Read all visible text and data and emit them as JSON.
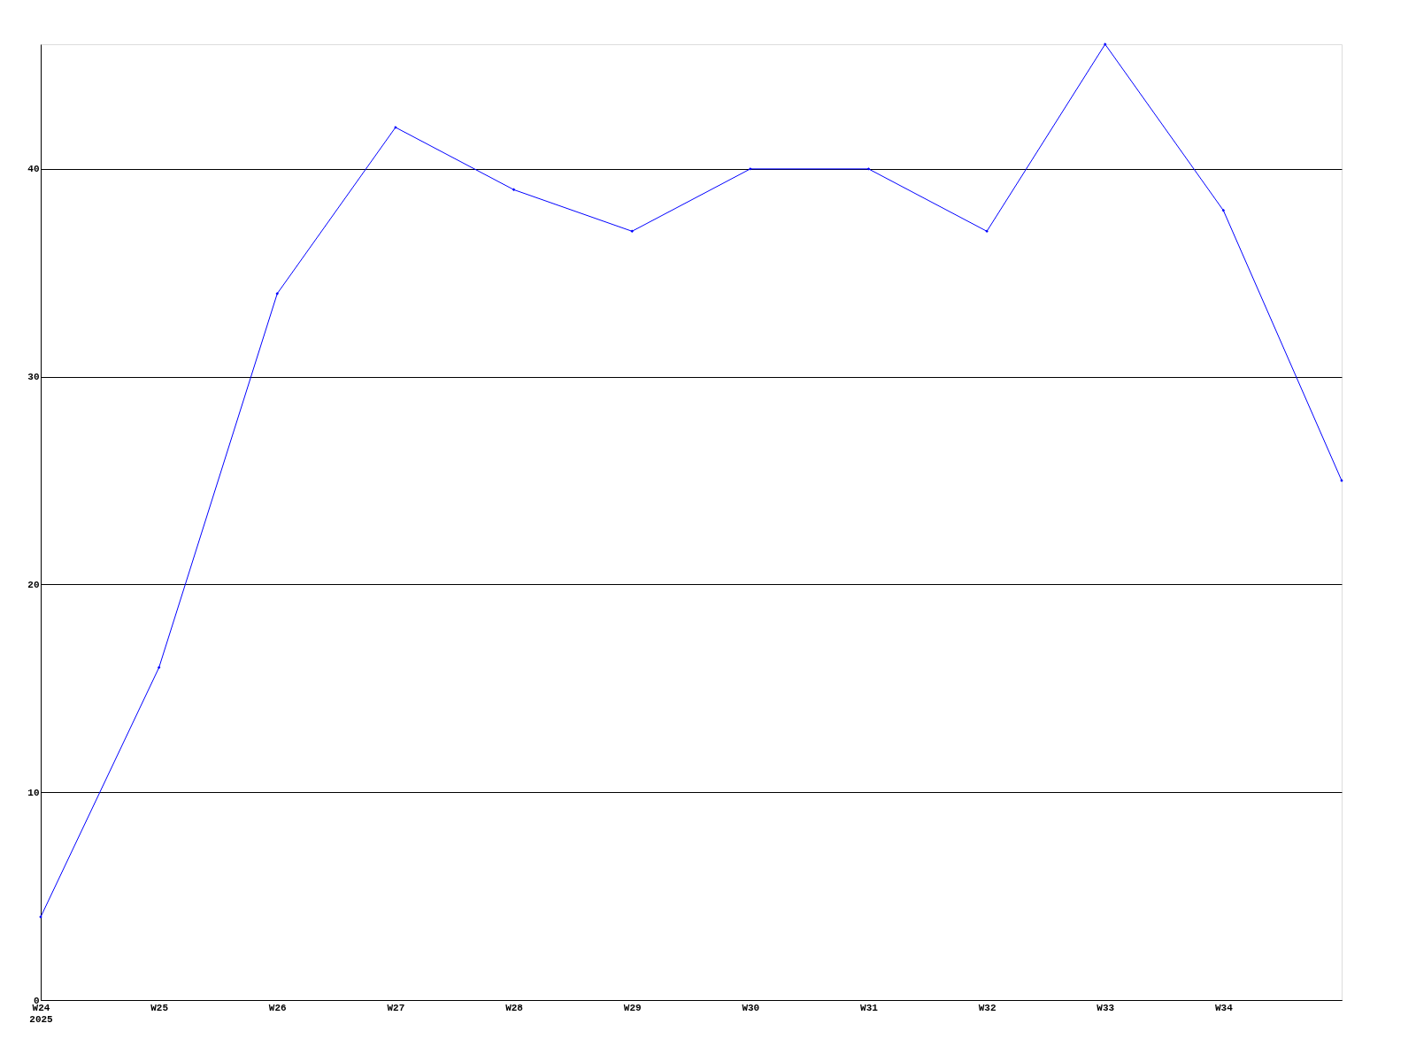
{
  "chart_data": {
    "type": "line",
    "categories": [
      "W24\n2025",
      "W25",
      "W26",
      "W27",
      "W28",
      "W29",
      "W30",
      "W31",
      "W32",
      "W33",
      "W34",
      null
    ],
    "series": [
      {
        "color": "#0000ff",
        "values": [
          4,
          16,
          34,
          42,
          39,
          37,
          40,
          40,
          37,
          46,
          38,
          25
        ]
      }
    ],
    "ylim": [
      0,
      46
    ],
    "yticks": [
      0,
      10,
      20,
      30,
      40
    ],
    "grid": "y",
    "marker": "diamond",
    "line_style": "solid"
  }
}
